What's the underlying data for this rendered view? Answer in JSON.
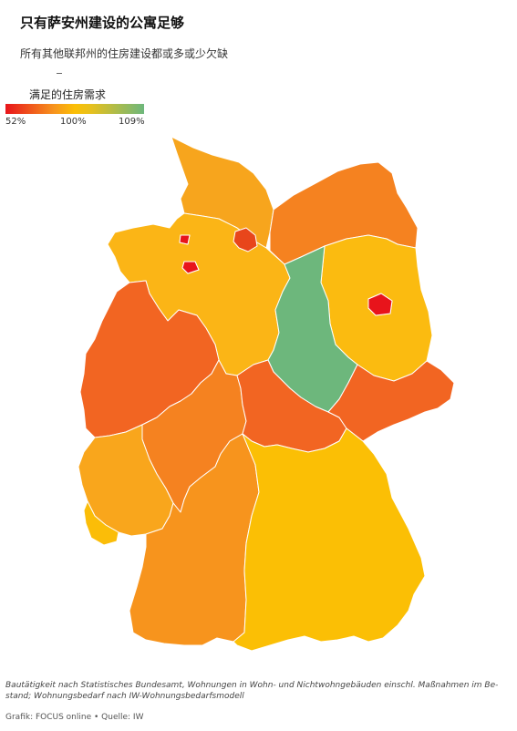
{
  "title": "只有萨安州建设的公寓足够",
  "subtitle": "所有其他联邦州的住房建设都或多或少欠缺",
  "legend": {
    "title": "满足的住房需求",
    "min_label": "52%",
    "mid_label": "100%",
    "max_label": "109%",
    "colors": {
      "low": "#e8141b",
      "mid": "#fbbf05",
      "high": "#6db77c"
    }
  },
  "map_data": {
    "colors": {
      "schleswig-holstein": "#f7a51d",
      "mecklenburg-vorpommern": "#f58220",
      "hamburg": "#e8461b",
      "bremen": "#e8141b",
      "niedersachsen": "#fbb516",
      "berlin": "#e8141b",
      "brandenburg": "#fbbb10",
      "sachsen-anhalt": "#6db77c",
      "nordrhein-westfalen": "#f26522",
      "hessen": "#f58220",
      "thueringen": "#f26522",
      "sachsen": "#f26522",
      "rheinland-pfalz": "#f9a61c",
      "saarland": "#fbbd08",
      "baden-wuerttemberg": "#f7941d",
      "bayern": "#fbbf05"
    }
  },
  "footnote": "Bautätigkeit nach Statistisches Bundesamt, Wohnungen in Wohn- und Nichtwohngebäuden einschl. Maßnahmen im Be- stand; Wohnungsbedarf nach IW-Wohnungsbedarfsmodell",
  "credit": "Grafik: FOCUS online • Quelle: IW"
}
